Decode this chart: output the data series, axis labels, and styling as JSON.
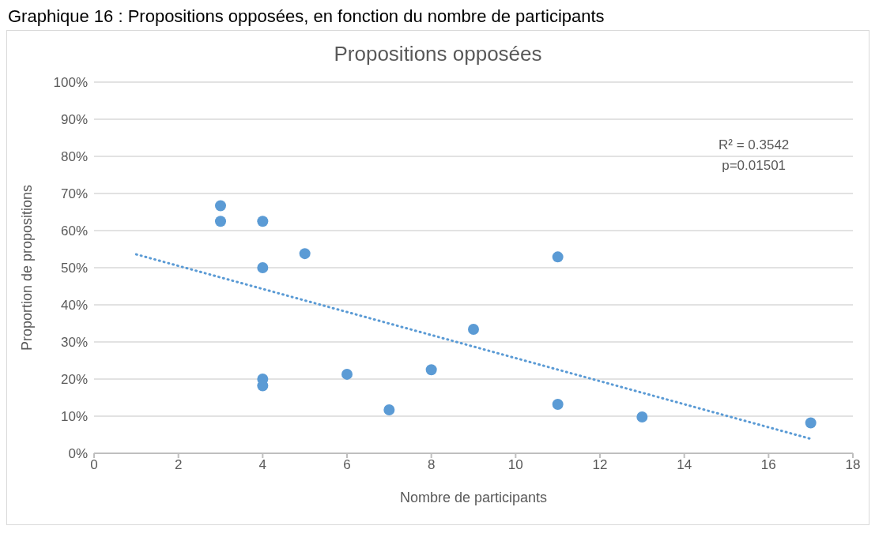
{
  "chart_data": {
    "type": "scatter",
    "title": "Graphique 16 : Propositions opposées, en fonction du nombre de participants",
    "subtitle": "Propositions opposées",
    "xlabel": "Nombre de participants",
    "ylabel": "Proportion de propositions",
    "annotations": [
      "R² = 0.3542",
      "p=0.01501"
    ],
    "series": [
      {
        "color": "#5b9bd5",
        "x": [
          3,
          3,
          4,
          4,
          5,
          4,
          4,
          6,
          7,
          8,
          9,
          11,
          11,
          13,
          17
        ],
        "values": [
          66.7,
          62.5,
          62.5,
          50,
          53.8,
          20,
          18.2,
          21.3,
          11.7,
          22.5,
          33.4,
          52.9,
          13.2,
          9.8,
          8.2
        ]
      },
      {
        "type": "line",
        "color": "#5b9bd5",
        "line_style": "dotted",
        "marker": "none",
        "x": [
          1,
          17
        ],
        "values": [
          53.6,
          3.9
        ]
      }
    ],
    "marker": "circle",
    "xlim": [
      0,
      18
    ],
    "xticks": [
      0,
      2,
      4,
      6,
      8,
      10,
      12,
      14,
      16,
      18
    ],
    "ylim": [
      0,
      100
    ],
    "yticks": [
      {
        "value": 0,
        "label": "0%"
      },
      {
        "value": 10,
        "label": "10%"
      },
      {
        "value": 20,
        "label": "20%"
      },
      {
        "value": 30,
        "label": "30%"
      },
      {
        "value": 40,
        "label": "40%"
      },
      {
        "value": 50,
        "label": "50%"
      },
      {
        "value": 60,
        "label": "60%"
      },
      {
        "value": 70,
        "label": "70%"
      },
      {
        "value": 80,
        "label": "80%"
      },
      {
        "value": 90,
        "label": "90%"
      },
      {
        "value": 100,
        "label": "100%"
      }
    ],
    "grid": "y"
  }
}
